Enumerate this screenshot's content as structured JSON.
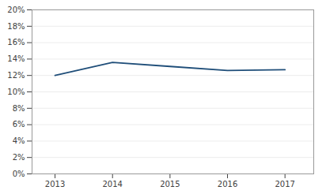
{
  "chart_data": {
    "type": "line",
    "x": [
      2013,
      2014,
      2015,
      2016,
      2017
    ],
    "values": [
      0.12,
      0.136,
      0.131,
      0.126,
      0.127
    ],
    "color": "#1F4E79",
    "xlim": [
      2012.6,
      2017.5
    ],
    "ylim": [
      0,
      0.2
    ],
    "xticks": [
      2013,
      2014,
      2015,
      2016,
      2017
    ],
    "yticks": [
      {
        "value": 0.0,
        "label": "0%"
      },
      {
        "value": 0.02,
        "label": "2%"
      },
      {
        "value": 0.04,
        "label": "4%"
      },
      {
        "value": 0.06,
        "label": "6%"
      },
      {
        "value": 0.08,
        "label": "8%"
      },
      {
        "value": 0.1,
        "label": "10%"
      },
      {
        "value": 0.12,
        "label": "12%"
      },
      {
        "value": 0.14,
        "label": "14%"
      },
      {
        "value": 0.16,
        "label": "16%"
      },
      {
        "value": 0.18,
        "label": "18%"
      },
      {
        "value": 0.2,
        "label": "20%"
      }
    ],
    "grid": true
  }
}
